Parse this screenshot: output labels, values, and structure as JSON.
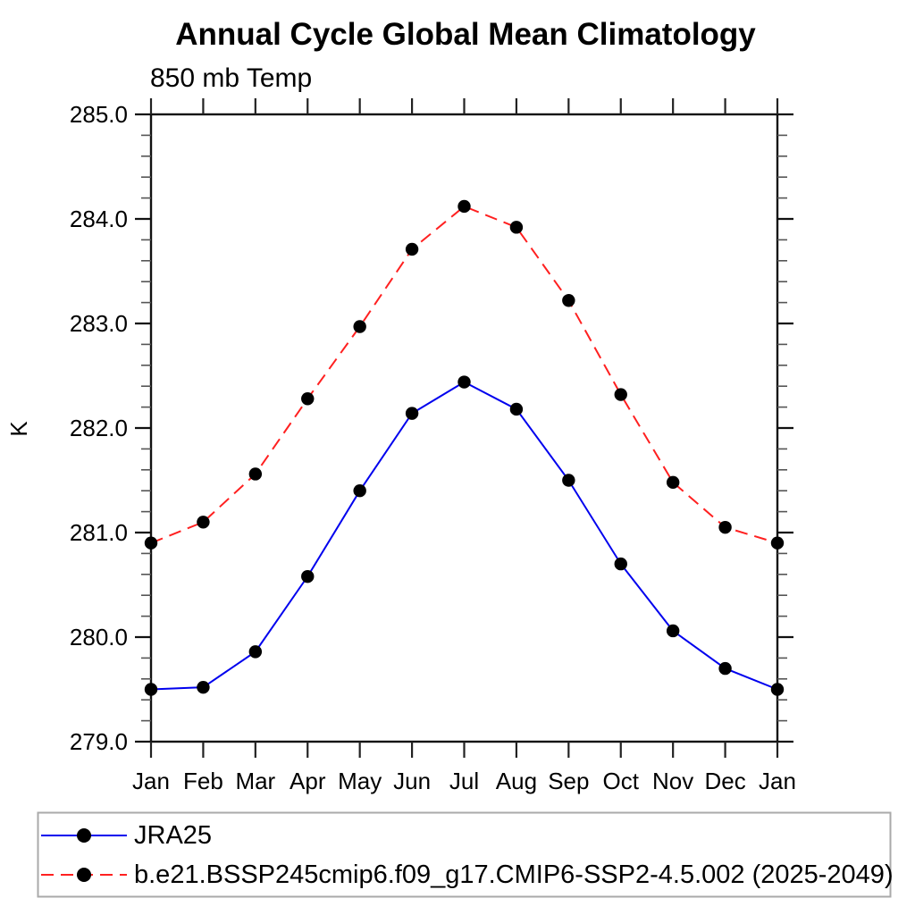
{
  "title": "Annual Cycle Global Mean Climatology",
  "subtitle": "850 mb Temp",
  "ylabel": "K",
  "chart_data": {
    "type": "line",
    "x_categories": [
      "Jan",
      "Feb",
      "Mar",
      "Apr",
      "May",
      "Jun",
      "Jul",
      "Aug",
      "Sep",
      "Oct",
      "Nov",
      "Dec",
      "Jan"
    ],
    "ylim": [
      279.0,
      285.0
    ],
    "ytick_major_interval": 1.0,
    "ytick_minor_interval": 0.2,
    "ytick_labels": [
      "279.0",
      "280.0",
      "281.0",
      "282.0",
      "283.0",
      "284.0",
      "285.0"
    ],
    "grid": false,
    "legend_position": "bottom",
    "marker_color": "#000000",
    "legend_border_color": "#aaaaaa",
    "series": [
      {
        "name": "JRA25",
        "color": "#0000ee",
        "style": "solid",
        "marker": "circle",
        "values": [
          279.5,
          279.52,
          279.86,
          280.58,
          281.4,
          282.14,
          282.44,
          282.18,
          281.5,
          280.7,
          280.06,
          279.7,
          279.5
        ]
      },
      {
        "name": "b.e21.BSSP245cmip6.f09_g17.CMIP6-SSP2-4.5.002 (2025-2049)",
        "color": "#ff2020",
        "style": "dashed",
        "marker": "circle",
        "values": [
          280.9,
          281.1,
          281.56,
          282.28,
          282.97,
          283.71,
          284.12,
          283.92,
          283.22,
          282.32,
          281.48,
          281.05,
          280.9
        ]
      }
    ]
  }
}
